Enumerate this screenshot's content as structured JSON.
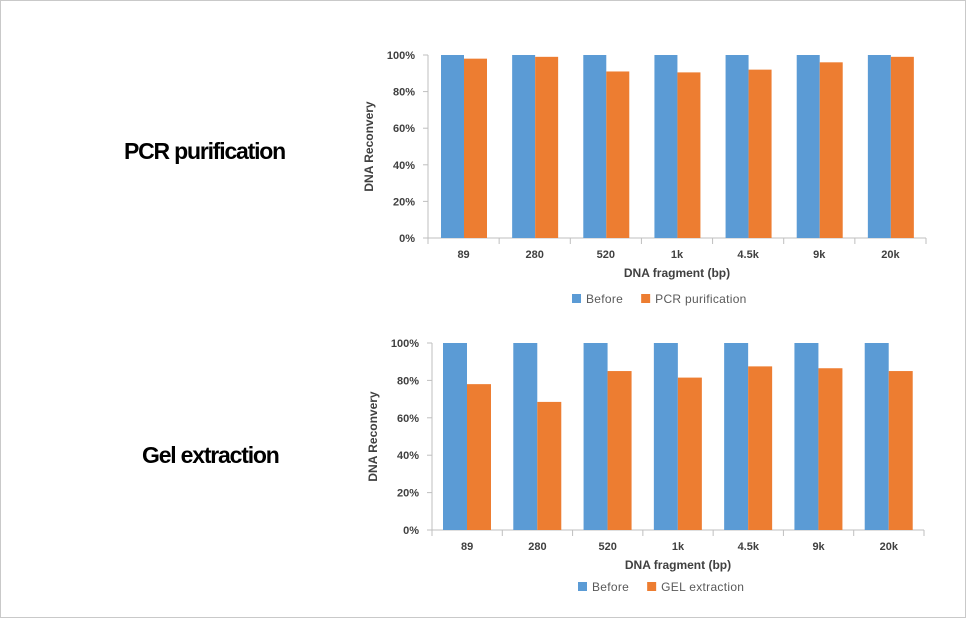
{
  "rows": [
    {
      "label": "PCR purification"
    },
    {
      "label": "Gel extraction"
    }
  ],
  "colors": {
    "before": "#5b9bd5",
    "after": "#ed7d31",
    "axis": "#bfbfbf",
    "text": "#404040"
  },
  "chart_data": [
    {
      "type": "bar",
      "categories": [
        "89",
        "280",
        "520",
        "1k",
        "4.5k",
        "9k",
        "20k"
      ],
      "series": [
        {
          "name": "Before",
          "values": [
            100,
            100,
            100,
            100,
            100,
            100,
            100
          ]
        },
        {
          "name": "PCR purification",
          "values": [
            98,
            99,
            91,
            90.5,
            92,
            96,
            99
          ]
        }
      ],
      "xlabel": "DNA fragment (bp)",
      "ylabel": "DNA Reconvery",
      "ylim": [
        0,
        100
      ],
      "yticks": [
        "0%",
        "20%",
        "40%",
        "60%",
        "80%",
        "100%"
      ],
      "legend": "bottom",
      "grid": false
    },
    {
      "type": "bar",
      "categories": [
        "89",
        "280",
        "520",
        "1k",
        "4.5k",
        "9k",
        "20k"
      ],
      "series": [
        {
          "name": "Before",
          "values": [
            100,
            100,
            100,
            100,
            100,
            100,
            100
          ]
        },
        {
          "name": "GEL extraction",
          "values": [
            78,
            68.5,
            85,
            81.5,
            87.5,
            86.5,
            85
          ]
        }
      ],
      "xlabel": "DNA fragment (bp)",
      "ylabel": "DNA Reconvery",
      "ylim": [
        0,
        100
      ],
      "yticks": [
        "0%",
        "20%",
        "40%",
        "60%",
        "80%",
        "100%"
      ],
      "legend": "bottom",
      "grid": false
    }
  ]
}
